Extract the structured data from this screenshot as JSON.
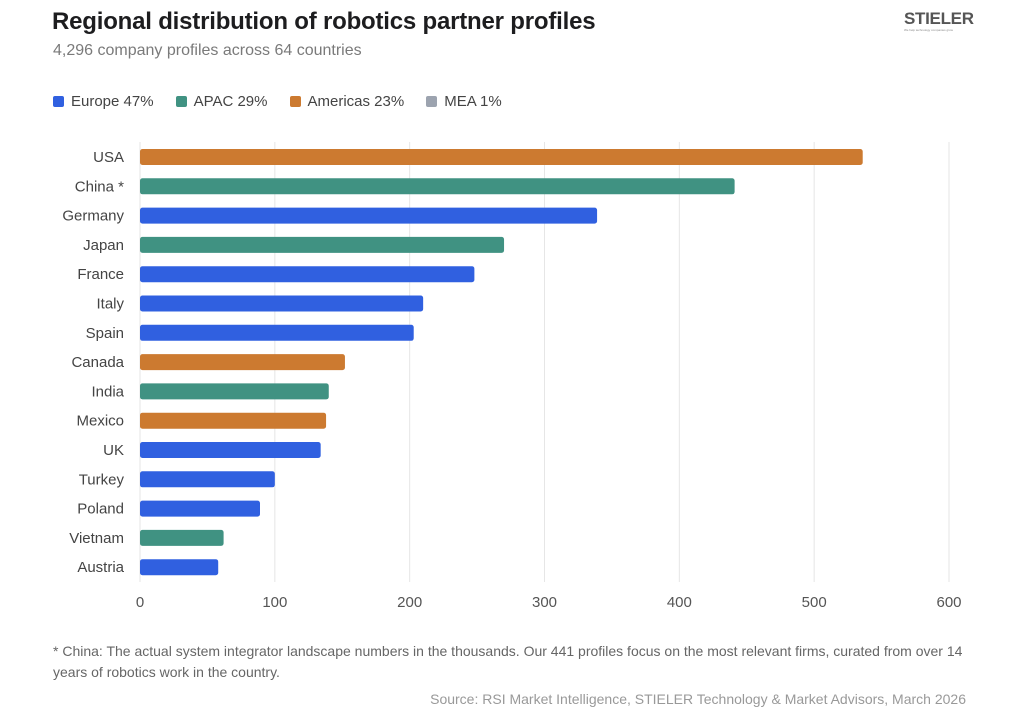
{
  "title": "Regional distribution of robotics partner profiles",
  "subtitle": "4,296 company profiles across 64 countries",
  "logo": {
    "name": "STIELER",
    "tagline": "We help technology companies grow"
  },
  "legend": [
    {
      "label": "Europe 47%",
      "color": "#3060e0"
    },
    {
      "label": "APAC 29%",
      "color": "#409282"
    },
    {
      "label": "Americas 23%",
      "color": "#cc7a30"
    },
    {
      "label": "MEA 1%",
      "color": "#9ca3af"
    }
  ],
  "chart_data": {
    "type": "bar",
    "orientation": "horizontal",
    "categories": [
      "USA",
      "China *",
      "Germany",
      "Japan",
      "France",
      "Italy",
      "Spain",
      "Canada",
      "India",
      "Mexico",
      "UK",
      "Turkey",
      "Poland",
      "Vietnam",
      "Austria"
    ],
    "values": [
      536,
      441,
      339,
      270,
      248,
      210,
      203,
      152,
      140,
      138,
      134,
      100,
      89,
      62,
      58
    ],
    "regions": [
      "Americas",
      "APAC",
      "Europe",
      "APAC",
      "Europe",
      "Europe",
      "Europe",
      "Americas",
      "APAC",
      "Americas",
      "Europe",
      "Europe",
      "Europe",
      "APAC",
      "Europe"
    ],
    "region_colors": {
      "Europe": "#3060e0",
      "APAC": "#409282",
      "Americas": "#cc7a30",
      "MEA": "#9ca3af"
    },
    "xlim": [
      0,
      600
    ],
    "xticks": [
      "0",
      "100",
      "200",
      "300",
      "400",
      "500",
      "600"
    ],
    "grid": true,
    "legend_position": "top-left"
  },
  "footnote": "* China: The actual system integrator landscape numbers in the thousands. Our 441 profiles focus on the most relevant firms, curated from over 14 years of robotics work in the country.",
  "source": "Source: RSI Market Intelligence, STIELER Technology & Market Advisors, March 2026"
}
